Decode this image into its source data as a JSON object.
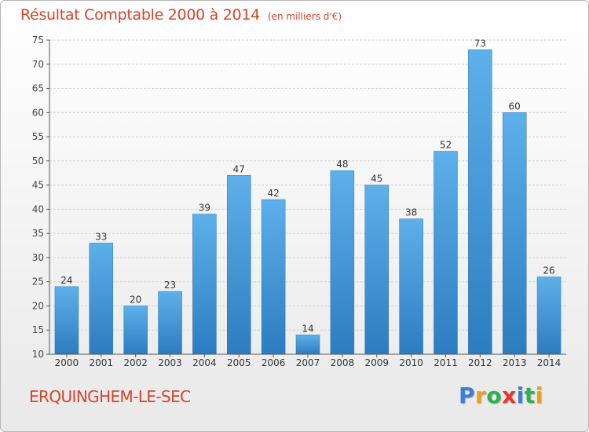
{
  "title": "Résultat Comptable 2000 à 2014",
  "title_unit": "(en milliers d'€)",
  "town": "ERQUINGHEM-LE-SEC",
  "logo": {
    "letters": [
      "P",
      "r",
      "o",
      "x",
      "i",
      "t",
      "i"
    ],
    "colors": [
      "#3a7fd5",
      "#e8a21b",
      "#2bb24c",
      "#e23a2a",
      "#3a7fd5",
      "#2bb24c",
      "#e8a21b"
    ]
  },
  "colors": {
    "bar_top": "#5eb0ea",
    "bar_bottom": "#2b7dc0",
    "text": "#d2452b"
  },
  "chart_data": {
    "type": "bar",
    "categories": [
      "2000",
      "2001",
      "2002",
      "2003",
      "2004",
      "2005",
      "2006",
      "2007",
      "2008",
      "2009",
      "2010",
      "2011",
      "2012",
      "2013",
      "2014"
    ],
    "values": [
      24,
      33,
      20,
      23,
      39,
      47,
      42,
      14,
      48,
      45,
      38,
      52,
      73,
      60,
      26
    ],
    "ylim": [
      10,
      75
    ],
    "yticks": [
      10,
      15,
      20,
      25,
      30,
      35,
      40,
      45,
      50,
      55,
      60,
      65,
      70,
      75
    ],
    "grid": true
  }
}
